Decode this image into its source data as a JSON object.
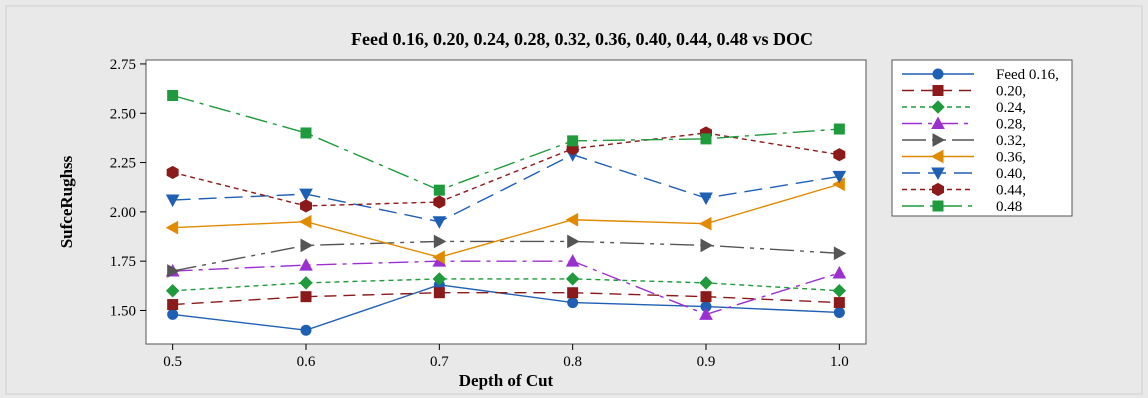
{
  "chart_data": {
    "type": "line",
    "title": "Feed 0.16, 0.20, 0.24, 0.28, 0.32, 0.36, 0.40, 0.44, 0.48 vs DOC",
    "xlabel": "Depth of Cut",
    "ylabel": "SufceRughss",
    "x": [
      0.5,
      0.6,
      0.7,
      0.8,
      0.9,
      1.0
    ],
    "x_tick_labels": [
      "0.5",
      "0.6",
      "0.7",
      "0.8",
      "0.9",
      "1.0"
    ],
    "xlim": [
      0.48,
      1.02
    ],
    "ylim": [
      1.33,
      2.77
    ],
    "y_ticks": [
      1.5,
      1.75,
      2.0,
      2.25,
      2.5,
      2.75
    ],
    "y_tick_labels": [
      "1.50",
      "1.75",
      "2.00",
      "2.25",
      "2.50",
      "2.75"
    ],
    "grid": false,
    "legend_position": "right",
    "series": [
      {
        "name": "Feed 0.16,",
        "values": [
          1.48,
          1.4,
          1.63,
          1.54,
          1.52,
          1.49
        ],
        "color": "#1f5fb4",
        "marker": "circle",
        "dash": ""
      },
      {
        "name": "0.20,",
        "values": [
          1.53,
          1.57,
          1.59,
          1.59,
          1.57,
          1.54
        ],
        "color": "#8b1a1a",
        "marker": "square",
        "dash": "12,7"
      },
      {
        "name": "0.24,",
        "values": [
          1.6,
          1.64,
          1.66,
          1.66,
          1.64,
          1.6
        ],
        "color": "#1f9a3c",
        "marker": "diamond",
        "dash": "5,4"
      },
      {
        "name": "0.28,",
        "values": [
          1.7,
          1.73,
          1.75,
          1.75,
          1.48,
          1.69
        ],
        "color": "#9b30d0",
        "marker": "triangle-up",
        "dash": "20,6,4,6"
      },
      {
        "name": "0.32,",
        "values": [
          1.7,
          1.83,
          1.85,
          1.85,
          1.83,
          1.79
        ],
        "color": "#555555",
        "marker": "triangle-right",
        "dash": "24,6,4,6,4,6"
      },
      {
        "name": "0.36,",
        "values": [
          1.92,
          1.95,
          1.77,
          1.96,
          1.94,
          2.14
        ],
        "color": "#e08a00",
        "marker": "triangle-left",
        "dash": ""
      },
      {
        "name": "0.40,",
        "values": [
          2.06,
          2.09,
          1.95,
          2.29,
          2.07,
          2.18
        ],
        "color": "#1f5fb4",
        "marker": "triangle-down",
        "dash": "18,8"
      },
      {
        "name": "0.44,",
        "values": [
          2.2,
          2.03,
          2.05,
          2.32,
          2.4,
          2.29
        ],
        "color": "#8b1a1a",
        "marker": "hexagon",
        "dash": "5,4"
      },
      {
        "name": "0.48",
        "values": [
          2.59,
          2.4,
          2.11,
          2.36,
          2.37,
          2.42
        ],
        "color": "#1f9a3c",
        "marker": "square",
        "dash": "22,6,4,6"
      }
    ]
  }
}
